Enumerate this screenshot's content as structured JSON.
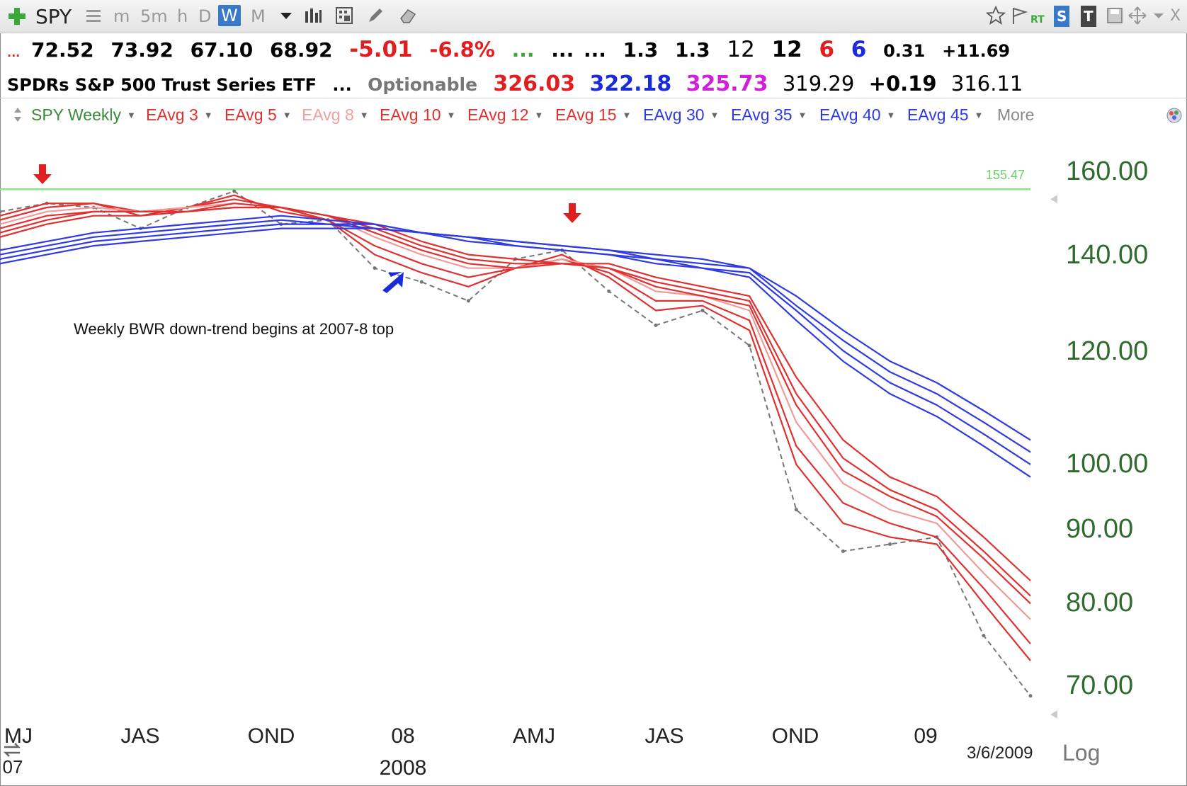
{
  "toolbar": {
    "symbol": "SPY",
    "periods": [
      "m",
      "5m",
      "h",
      "D",
      "W",
      "M"
    ],
    "active_period": "W",
    "right_labels": {
      "rt": "RT",
      "s": "S",
      "t": "T",
      "close": "X"
    }
  },
  "quote": {
    "open": "72.52",
    "high": "73.92",
    "low": "67.10",
    "close": "68.92",
    "change": "-5.01",
    "change_pct": "-6.8%",
    "dots1": "...",
    "dots2": "...",
    "dots3": "...",
    "v1": "1.3",
    "v2": "1.3",
    "v3": "12",
    "v4": "12",
    "v5": "6",
    "v6": "6",
    "v7": "0.31",
    "v8": "+11.69",
    "marker": "..."
  },
  "info": {
    "name": "SPDRs S&P 500 Trust Series ETF",
    "dots": "...",
    "optionable": "Optionable",
    "p1": "326.03",
    "p2": "322.18",
    "p3": "325.73",
    "p4": "319.29",
    "p5": "+0.19",
    "p6": "316.11"
  },
  "colors": {
    "red": "#e02020",
    "blue": "#1a2bd8",
    "magenta": "#d020d8",
    "green": "#2f6b2f",
    "fast_ma": "#e03030",
    "slow_ma": "#2f3ae0",
    "ma8": "#f09a9a",
    "hline": "#8ee08e"
  },
  "legend": {
    "series_label": "SPY Weekly",
    "items": [
      "EAvg 3",
      "EAvg 5",
      "EAvg 8",
      "EAvg 10",
      "EAvg 12",
      "EAvg 15",
      "EAvg 30",
      "EAvg 35",
      "EAvg 40",
      "EAvg 45"
    ],
    "more": "More"
  },
  "annotation": "Weekly BWR down-trend begins at 2007-8 top",
  "axis": {
    "price_ticks": [
      "160.00",
      "140.00",
      "120.00",
      "100.00",
      "90.00",
      "80.00",
      "70.00"
    ],
    "x_ticks": [
      "MJ",
      "JAS",
      "OND",
      "08",
      "AMJ",
      "JAS",
      "OND",
      "09"
    ],
    "x_year_left": "07",
    "x_year": "2008",
    "last_date": "3/6/2009",
    "scale": "Log",
    "hline_value": "155.47"
  },
  "chart_data": {
    "type": "line",
    "scale": "log",
    "title": "",
    "ylim": [
      65,
      165
    ],
    "grid": false,
    "x": [
      "2007-05",
      "2007-06",
      "2007-07",
      "2007-08",
      "2007-09",
      "2007-10",
      "2007-11",
      "2007-12",
      "2008-01",
      "2008-02",
      "2008-03",
      "2008-04",
      "2008-05",
      "2008-06",
      "2008-07",
      "2008-08",
      "2008-09",
      "2008-10",
      "2008-11",
      "2008-12",
      "2009-01",
      "2009-02",
      "2009-03"
    ],
    "reference_line": 155.47,
    "series": [
      {
        "name": "SPY Weekly",
        "values": [
          150,
          152,
          151,
          146,
          151,
          155,
          147,
          148,
          137,
          134,
          130,
          139,
          141,
          132,
          125,
          128,
          121,
          93,
          87,
          88,
          89,
          76,
          69
        ]
      },
      {
        "name": "EAvg 3",
        "values": [
          149,
          152,
          152,
          149,
          151,
          154,
          150,
          148,
          140,
          136,
          133,
          137,
          140,
          135,
          128,
          129,
          124,
          100,
          91,
          89,
          88,
          80,
          73
        ]
      },
      {
        "name": "EAvg 5",
        "values": [
          148,
          151,
          152,
          150,
          151,
          153,
          151,
          148,
          142,
          138,
          135,
          137,
          139,
          136,
          130,
          130,
          126,
          103,
          94,
          91,
          89,
          82,
          75
        ]
      },
      {
        "name": "EAvg 8",
        "values": [
          147,
          150,
          151,
          150,
          151,
          152,
          151,
          149,
          144,
          140,
          137,
          137,
          139,
          137,
          132,
          131,
          128,
          107,
          97,
          93,
          91,
          84,
          78
        ]
      },
      {
        "name": "EAvg 10",
        "values": [
          146,
          149,
          150,
          150,
          150,
          152,
          151,
          149,
          145,
          141,
          138,
          137,
          138,
          137,
          133,
          131,
          129,
          110,
          99,
          95,
          92,
          86,
          80
        ]
      },
      {
        "name": "EAvg 12",
        "values": [
          145,
          148,
          150,
          150,
          150,
          151,
          151,
          149,
          146,
          142,
          139,
          138,
          138,
          137,
          134,
          132,
          130,
          112,
          101,
          96,
          93,
          87,
          81
        ]
      },
      {
        "name": "EAvg 15",
        "values": [
          144,
          147,
          149,
          149,
          150,
          151,
          151,
          149,
          147,
          143,
          140,
          139,
          138,
          138,
          135,
          133,
          131,
          115,
          104,
          98,
          95,
          89,
          83
        ]
      },
      {
        "name": "EAvg 30",
        "values": [
          141,
          143,
          145,
          146,
          147,
          148,
          149,
          148,
          147,
          145,
          143,
          142,
          141,
          140,
          138,
          137,
          135,
          126,
          118,
          112,
          108,
          103,
          98
        ]
      },
      {
        "name": "EAvg 35",
        "values": [
          140,
          142,
          144,
          145,
          146,
          147,
          148,
          147,
          147,
          145,
          144,
          142,
          141,
          140,
          139,
          137,
          136,
          128,
          120,
          114,
          110,
          105,
          100
        ]
      },
      {
        "name": "EAvg 40",
        "values": [
          139,
          141,
          143,
          144,
          145,
          146,
          147,
          147,
          146,
          145,
          144,
          143,
          142,
          141,
          139,
          138,
          137,
          129,
          122,
          116,
          112,
          107,
          102
        ]
      },
      {
        "name": "EAvg 45",
        "values": [
          138,
          140,
          142,
          143,
          144,
          145,
          146,
          146,
          146,
          145,
          144,
          143,
          142,
          141,
          140,
          139,
          137,
          131,
          124,
          118,
          114,
          109,
          104
        ]
      }
    ]
  }
}
